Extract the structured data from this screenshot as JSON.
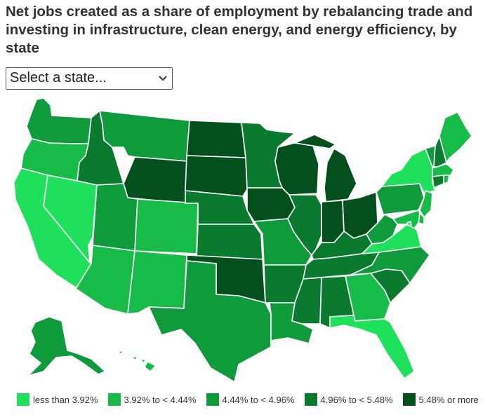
{
  "title": "Net jobs created as a share of employment by rebalancing trade and investing in infrastructure, clean energy, and energy efficiency, by state",
  "selector": {
    "value": "Select a state...",
    "icon": "chevron-down-icon"
  },
  "colors": {
    "c1": "#1fe05a",
    "c2": "#16bb48",
    "c3": "#0f9a3b",
    "c4": "#0a7a2e",
    "c5": "#04501d"
  },
  "legend": [
    {
      "label": "less than 3.92%",
      "color": "#1fe05a"
    },
    {
      "label": "3.92% to < 4.44%",
      "color": "#16bb48"
    },
    {
      "label": "4.44% to < 4.96%",
      "color": "#0f9a3b"
    },
    {
      "label": "4.96% to < 5.48%",
      "color": "#0a7a2e"
    },
    {
      "label": "5.48% or more",
      "color": "#04501d"
    }
  ],
  "states": {
    "WA": "c3",
    "OR": "c2",
    "CA": "c1",
    "NV": "c1",
    "ID": "c4",
    "MT": "c3",
    "WY": "c5",
    "UT": "c3",
    "AZ": "c2",
    "CO": "c2",
    "NM": "c2",
    "ND": "c5",
    "SD": "c5",
    "NE": "c4",
    "KS": "c4",
    "OK": "c5",
    "TX": "c3",
    "MN": "c4",
    "IA": "c5",
    "MO": "c3",
    "AR": "c4",
    "LA": "c3",
    "WI": "c5",
    "IL": "c4",
    "MI": "c5",
    "IN": "c5",
    "OH": "c5",
    "KY": "c4",
    "TN": "c4",
    "MS": "c4",
    "AL": "c4",
    "GA": "c2",
    "FL": "c1",
    "SC": "c4",
    "NC": "c3",
    "VA": "c1",
    "WV": "c3",
    "PA": "c3",
    "NY": "c1",
    "VT": "c3",
    "NH": "c4",
    "ME": "c2",
    "MA": "c2",
    "CT": "c4",
    "RI": "c2",
    "NJ": "c2",
    "DE": "c2",
    "MD": "c2",
    "DC": "c1",
    "AK": "c3",
    "HI": "c2"
  }
}
